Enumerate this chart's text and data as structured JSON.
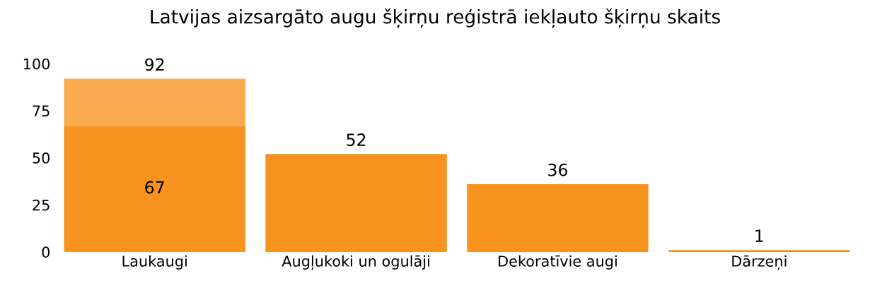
{
  "chart_data": {
    "type": "bar",
    "title": "Latvijas aizsargāto augu šķirņu reģistrā iekļauto šķirņu skaits",
    "categories": [
      "Laukaugi",
      "Augļukoki un ogulāji",
      "Dekoratīvie augi",
      "Dārzeņi"
    ],
    "stacked": true,
    "series": [
      {
        "color": "#f7931e",
        "values": [
          67,
          52,
          36,
          1
        ],
        "value_labels": [
          "67",
          "52",
          "36",
          "1"
        ]
      },
      {
        "color": "#fbab50",
        "values": [
          25,
          null,
          null,
          null
        ]
      }
    ],
    "totals": [
      "92",
      null,
      null,
      null
    ],
    "ylim": [
      0,
      100
    ],
    "yticks": [
      0,
      25,
      50,
      75,
      100
    ],
    "grid": false,
    "legend": false
  }
}
